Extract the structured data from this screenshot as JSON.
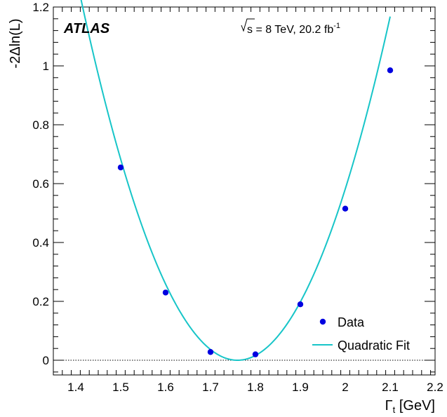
{
  "chart_data": {
    "type": "scatter",
    "title": "",
    "xlabel": "Γt [GeV]",
    "ylabel": "-2Δln(L)",
    "xlim": [
      1.35,
      2.2
    ],
    "ylim": [
      -0.05,
      1.2
    ],
    "x_ticks": [
      "1.4",
      "1.5",
      "1.6",
      "1.7",
      "1.8",
      "1.9",
      "2",
      "2.1",
      "2.2"
    ],
    "y_ticks": [
      "0",
      "0.2",
      "0.4",
      "0.6",
      "0.8",
      "1",
      "1.2"
    ],
    "series": [
      {
        "name": "Data",
        "kind": "points",
        "color": "#0000e0",
        "x": [
          1.5,
          1.6,
          1.7,
          1.8,
          1.9,
          2.0,
          2.1
        ],
        "y": [
          0.655,
          0.23,
          0.028,
          0.02,
          0.19,
          0.515,
          0.985
        ]
      },
      {
        "name": "Quadratic Fit",
        "kind": "curve",
        "color": "#17c5c8",
        "curvature": 10.1,
        "minimum_x": 1.76,
        "minimum_y": 0.0,
        "x_range": [
          1.41,
          2.1
        ]
      }
    ],
    "reference_line": {
      "y": 0,
      "style": "dotted"
    },
    "legend_position": "bottom-right",
    "grid": false
  },
  "annotations": {
    "experiment": "ATLAS",
    "energy_prefix": "s = 8 TeV, 20.2 fb",
    "energy_superscript": "-1"
  },
  "axes": {
    "x_title_main": "Γ",
    "x_title_sub": "t",
    "x_title_unit": " [GeV]",
    "y_title": "-2Δln(L)"
  }
}
